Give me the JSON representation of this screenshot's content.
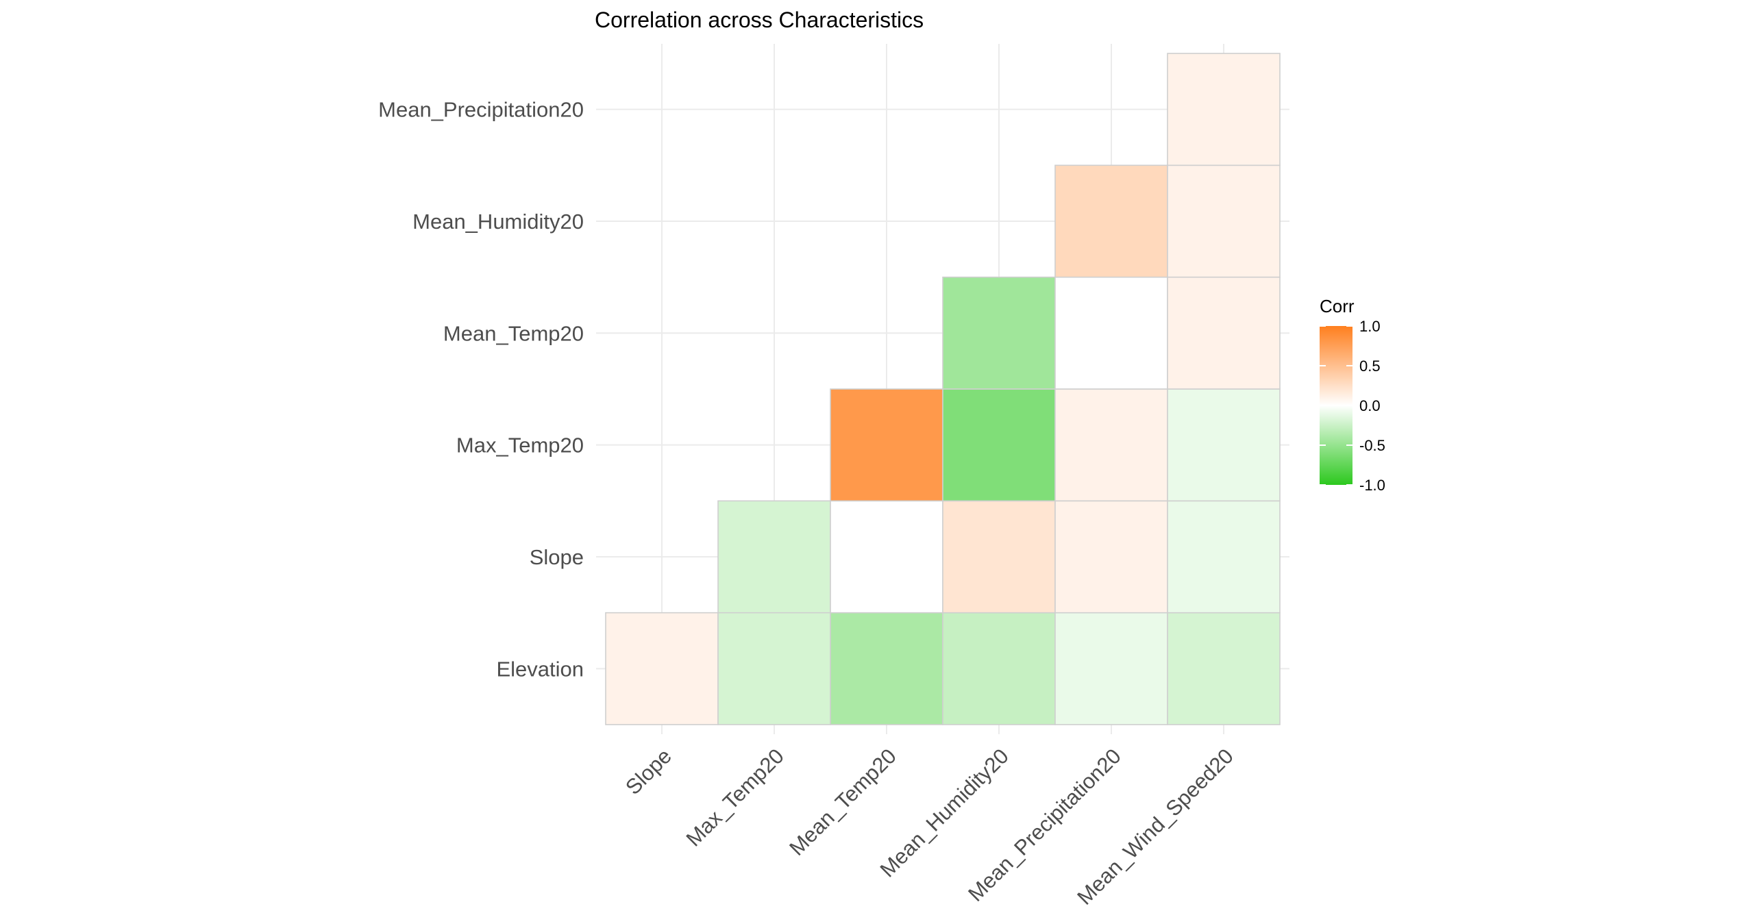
{
  "chart_data": {
    "type": "heatmap",
    "title": "Correlation across Characteristics",
    "x_categories": [
      "Slope",
      "Max_Temp20",
      "Mean_Temp20",
      "Mean_Humidity20",
      "Mean_Precipitation20",
      "Mean_Wind_Speed20"
    ],
    "y_categories": [
      "Elevation",
      "Slope",
      "Max_Temp20",
      "Mean_Temp20",
      "Mean_Humidity20",
      "Mean_Precipitation20"
    ],
    "cells": [
      {
        "x": "Slope",
        "y": "Elevation",
        "value": 0.1
      },
      {
        "x": "Max_Temp20",
        "y": "Elevation",
        "value": -0.2
      },
      {
        "x": "Mean_Temp20",
        "y": "Elevation",
        "value": -0.4
      },
      {
        "x": "Mean_Humidity20",
        "y": "Elevation",
        "value": -0.27
      },
      {
        "x": "Mean_Precipitation20",
        "y": "Elevation",
        "value": -0.1
      },
      {
        "x": "Mean_Wind_Speed20",
        "y": "Elevation",
        "value": -0.2
      },
      {
        "x": "Max_Temp20",
        "y": "Slope",
        "value": -0.2
      },
      {
        "x": "Mean_Temp20",
        "y": "Slope",
        "value": 0.0
      },
      {
        "x": "Mean_Humidity20",
        "y": "Slope",
        "value": 0.2
      },
      {
        "x": "Mean_Precipitation20",
        "y": "Slope",
        "value": 0.1
      },
      {
        "x": "Mean_Wind_Speed20",
        "y": "Slope",
        "value": -0.1
      },
      {
        "x": "Mean_Temp20",
        "y": "Max_Temp20",
        "value": 0.8
      },
      {
        "x": "Mean_Humidity20",
        "y": "Max_Temp20",
        "value": -0.6
      },
      {
        "x": "Mean_Precipitation20",
        "y": "Max_Temp20",
        "value": 0.1
      },
      {
        "x": "Mean_Wind_Speed20",
        "y": "Max_Temp20",
        "value": -0.1
      },
      {
        "x": "Mean_Humidity20",
        "y": "Mean_Temp20",
        "value": -0.45
      },
      {
        "x": "Mean_Precipitation20",
        "y": "Mean_Temp20",
        "value": 0.0
      },
      {
        "x": "Mean_Wind_Speed20",
        "y": "Mean_Temp20",
        "value": 0.1
      },
      {
        "x": "Mean_Precipitation20",
        "y": "Mean_Humidity20",
        "value": 0.3
      },
      {
        "x": "Mean_Wind_Speed20",
        "y": "Mean_Humidity20",
        "value": 0.1
      },
      {
        "x": "Mean_Wind_Speed20",
        "y": "Mean_Precipitation20",
        "value": 0.1
      }
    ],
    "legend": {
      "title": "Corr",
      "position": "right",
      "limits": [
        -1.0,
        1.0
      ],
      "ticks": [
        1.0,
        0.5,
        0.0,
        -0.5,
        -1.0
      ],
      "tick_labels": [
        "1.0",
        "0.5",
        "0.0",
        "-0.5",
        "-1.0"
      ]
    },
    "colors": {
      "high": "#ff7f1e",
      "mid": "#ffffff",
      "low": "#2cc81e",
      "cell_border": "#cfcfcf",
      "grid": "#ebebeb"
    },
    "grid": true
  }
}
